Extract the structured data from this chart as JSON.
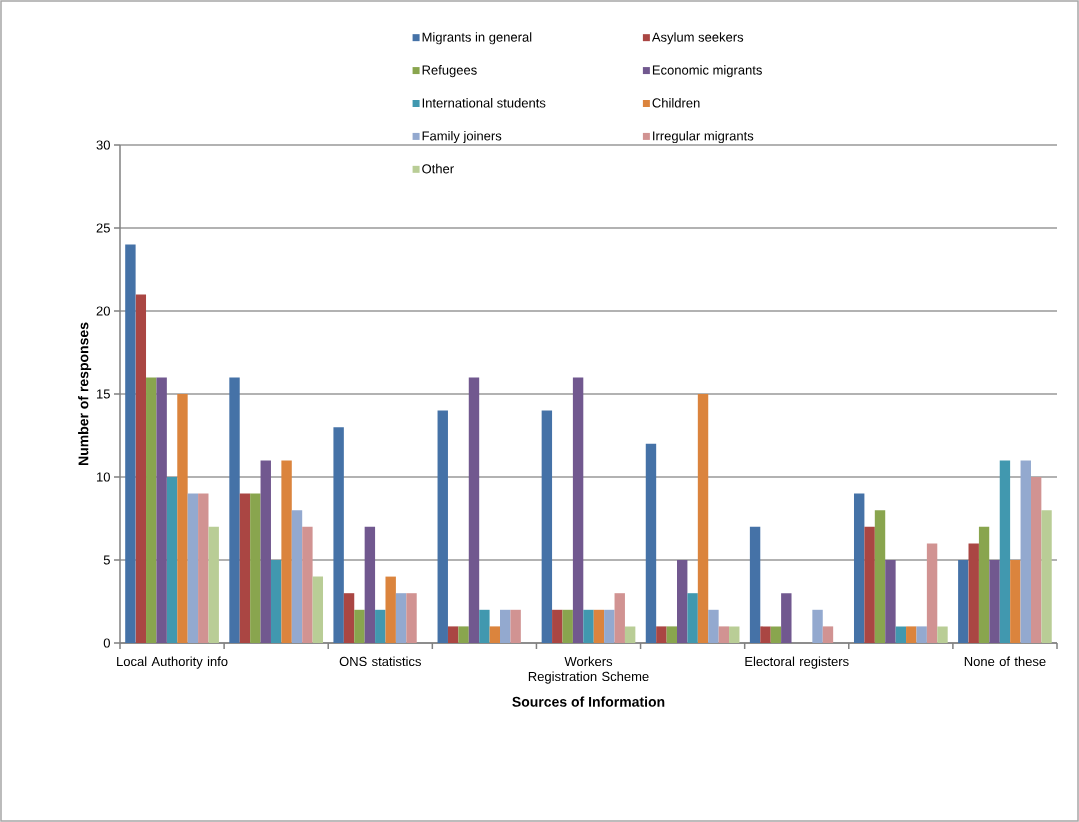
{
  "chart_data": {
    "type": "bar",
    "xlabel": "Sources of Information",
    "ylabel": "Number of responses",
    "categories": [
      "Local Authority info",
      null,
      "ONS statistics",
      null,
      "Workers Registration Scheme",
      null,
      "Electoral registers",
      null,
      "None of these"
    ],
    "series": [
      {
        "name": "Migrants in general",
        "color": "#4572a7",
        "values": [
          24,
          16,
          13,
          14,
          14,
          12,
          7,
          9,
          5
        ]
      },
      {
        "name": "Asylum seekers",
        "color": "#aa4643",
        "values": [
          21,
          9,
          3,
          1,
          2,
          1,
          1,
          7,
          6
        ]
      },
      {
        "name": "Refugees",
        "color": "#89a54e",
        "values": [
          16,
          9,
          2,
          1,
          2,
          1,
          1,
          8,
          7
        ]
      },
      {
        "name": "Economic migrants",
        "color": "#71588f",
        "values": [
          16,
          11,
          7,
          16,
          16,
          5,
          3,
          5,
          5
        ]
      },
      {
        "name": "International students",
        "color": "#4198af",
        "values": [
          10,
          5,
          2,
          2,
          2,
          3,
          0,
          1,
          11
        ]
      },
      {
        "name": "Children",
        "color": "#db843d",
        "values": [
          15,
          11,
          4,
          1,
          2,
          15,
          0,
          1,
          5
        ]
      },
      {
        "name": "Family joiners",
        "color": "#93a9cf",
        "values": [
          9,
          8,
          3,
          2,
          2,
          2,
          2,
          1,
          11
        ]
      },
      {
        "name": "Irregular migrants",
        "color": "#d19392",
        "values": [
          9,
          7,
          3,
          2,
          3,
          1,
          1,
          6,
          10
        ]
      },
      {
        "name": "Other",
        "color": "#b9cd96",
        "values": [
          7,
          4,
          0,
          0,
          1,
          1,
          0,
          1,
          8
        ]
      }
    ],
    "ylim": [
      0,
      30
    ],
    "yticks": [
      0,
      5,
      10,
      15,
      20,
      25,
      30
    ],
    "grid": "y",
    "legend": "top"
  }
}
